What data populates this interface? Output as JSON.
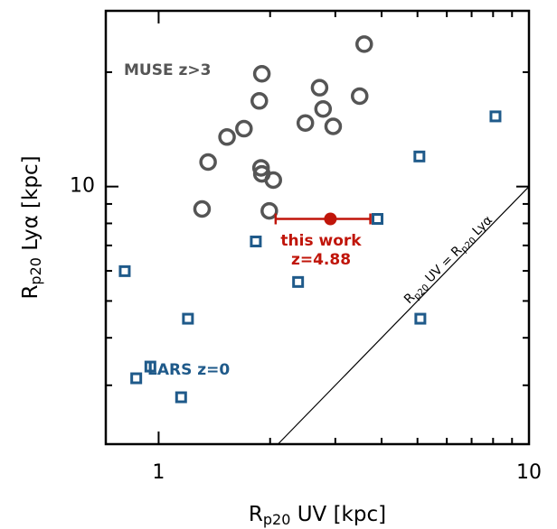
{
  "chart_data": {
    "type": "scatter",
    "xlabel": {
      "main": "R",
      "sub": "p20",
      "rest": " UV [kpc]"
    },
    "ylabel": {
      "main": "R",
      "sub": "p20",
      "rest": " Lyα [kpc]"
    },
    "xscale": "log",
    "yscale": "log",
    "xlim": [
      0.72,
      10
    ],
    "ylim": [
      2.1,
      29
    ],
    "xticks": [
      1,
      10
    ],
    "yticks": [
      10
    ],
    "xminor": [
      2,
      3,
      4,
      5,
      6,
      7,
      8,
      9
    ],
    "yminor": [
      3,
      4,
      5,
      6,
      7,
      8,
      9,
      20
    ],
    "series": [
      {
        "name": "MUSE z>3",
        "color": "#555555",
        "marker": "circle",
        "x": [
          3.59,
          1.9,
          2.72,
          1.87,
          3.49,
          2.78,
          2.49,
          2.96,
          1.7,
          1.53,
          1.36,
          1.89,
          1.9,
          2.04,
          1.31,
          1.99
        ],
        "values": [
          23.7,
          19.8,
          18.2,
          16.8,
          17.3,
          16.0,
          14.7,
          14.4,
          14.2,
          13.5,
          11.6,
          11.2,
          10.8,
          10.4,
          8.73,
          8.63
        ]
      },
      {
        "name": "LARS z=0",
        "color": "#1f5a8a",
        "marker": "square",
        "x": [
          8.12,
          5.06,
          3.9,
          1.83,
          0.81,
          2.38,
          1.2,
          5.09,
          0.95,
          0.87,
          1.15
        ],
        "values": [
          15.3,
          12.0,
          8.22,
          7.17,
          5.99,
          5.61,
          4.49,
          4.49,
          3.36,
          3.13,
          2.79
        ]
      }
    ],
    "highlight": {
      "name": "this work",
      "subname": "z=4.88",
      "color": "#c0150a",
      "x": 2.91,
      "value": 8.22,
      "xmin": 2.07,
      "xmax": 3.73
    },
    "reference_line": {
      "slope": 1,
      "label": {
        "main": "R",
        "sub": "p20",
        "mid": " UV = R",
        "sub2": "p20",
        "rest": " Lyα"
      }
    }
  }
}
